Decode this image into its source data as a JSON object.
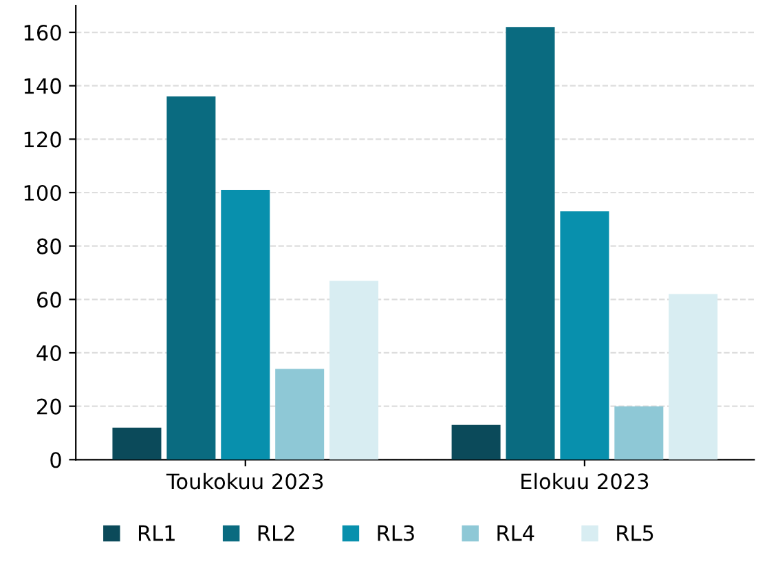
{
  "chart_data": {
    "type": "bar",
    "categories": [
      "Toukokuu 2023",
      "Elokuu 2023"
    ],
    "series": [
      {
        "name": "RL1",
        "color": "#0b4a5a",
        "values": [
          12,
          13
        ]
      },
      {
        "name": "RL2",
        "color": "#0a6b80",
        "values": [
          136,
          162
        ]
      },
      {
        "name": "RL3",
        "color": "#0890ad",
        "values": [
          101,
          93
        ]
      },
      {
        "name": "RL4",
        "color": "#8ec8d6",
        "values": [
          34,
          20
        ]
      },
      {
        "name": "RL5",
        "color": "#d8edf2",
        "values": [
          67,
          62
        ]
      }
    ],
    "ylim": [
      0,
      170
    ],
    "yticks": [
      0,
      20,
      40,
      60,
      80,
      100,
      120,
      140,
      160
    ],
    "grid": "y",
    "legend": "bottom"
  }
}
